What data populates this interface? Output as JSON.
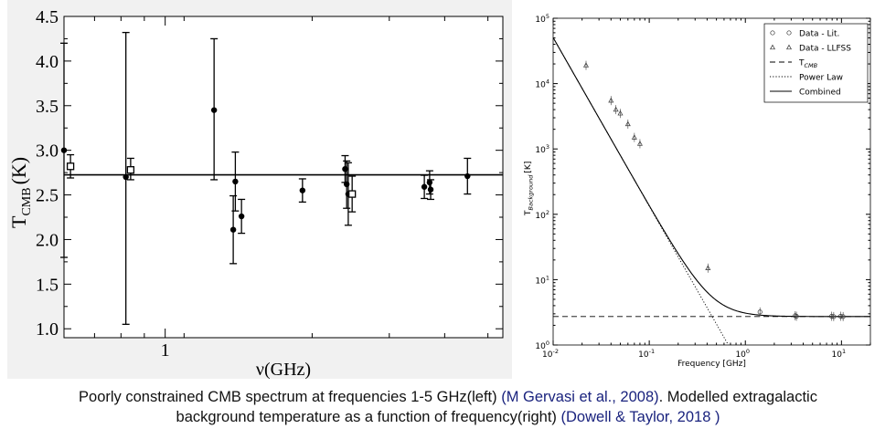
{
  "chart_data": [
    {
      "type": "scatter",
      "xlabel": "ν(GHz)",
      "ylabel": "T",
      "ylabel_sub": "CMB",
      "ylabel_unit": "(K)",
      "xscale": "log",
      "xlim": [
        0.6,
        5.5
      ],
      "ylim": [
        0.9,
        4.5
      ],
      "x_tick_labels": [
        {
          "value": 1,
          "label": "1"
        }
      ],
      "y_ticks": [
        1.0,
        1.5,
        2.0,
        2.5,
        3.0,
        3.5,
        4.0,
        4.5
      ],
      "y_tick_labels": [
        "1.0",
        "1.5",
        "2.0",
        "2.5",
        "3.0",
        "3.5",
        "4.0",
        "4.5"
      ],
      "reference_line": 2.725,
      "series": [
        {
          "marker": "circle",
          "points": [
            {
              "x": 0.6,
              "y": 3.0,
              "lo": 1.8,
              "hi": 4.2
            },
            {
              "x": 0.82,
              "y": 2.7,
              "lo": 1.05,
              "hi": 4.32
            },
            {
              "x": 1.28,
              "y": 3.45,
              "lo": 2.67,
              "hi": 4.25
            },
            {
              "x": 1.41,
              "y": 2.11,
              "lo": 1.73,
              "hi": 2.49
            },
            {
              "x": 1.425,
              "y": 2.65,
              "lo": 2.32,
              "hi": 2.98
            },
            {
              "x": 1.47,
              "y": 2.26,
              "lo": 2.07,
              "hi": 2.45
            },
            {
              "x": 2.0,
              "y": 2.55,
              "lo": 2.42,
              "hi": 2.68
            },
            {
              "x": 2.48,
              "y": 2.79,
              "lo": 2.64,
              "hi": 2.94
            },
            {
              "x": 2.5,
              "y": 2.62,
              "lo": 2.35,
              "hi": 2.88
            },
            {
              "x": 2.52,
              "y": 2.51,
              "lo": 2.16,
              "hi": 2.86
            },
            {
              "x": 3.7,
              "y": 2.59,
              "lo": 2.46,
              "hi": 2.72
            },
            {
              "x": 3.8,
              "y": 2.64,
              "lo": 2.51,
              "hi": 2.77
            },
            {
              "x": 3.82,
              "y": 2.56,
              "lo": 2.45,
              "hi": 2.67
            },
            {
              "x": 4.6,
              "y": 2.71,
              "lo": 2.51,
              "hi": 2.91
            }
          ]
        },
        {
          "marker": "square",
          "points": [
            {
              "x": 0.62,
              "y": 2.82,
              "lo": 2.69,
              "hi": 2.95
            },
            {
              "x": 0.84,
              "y": 2.78,
              "lo": 2.67,
              "hi": 2.91
            },
            {
              "x": 2.57,
              "y": 2.51,
              "lo": 2.31,
              "hi": 2.71
            }
          ]
        }
      ]
    },
    {
      "type": "line",
      "xlabel": "Frequency [GHz]",
      "ylabel": "T",
      "ylabel_sub": "Background",
      "ylabel_unit": "[K]",
      "xscale": "log",
      "yscale": "log",
      "xlim": [
        0.01,
        20
      ],
      "ylim": [
        1,
        100000
      ],
      "x_ticks": [
        0.01,
        0.1,
        1,
        10
      ],
      "x_tick_labels": [
        {
          "base": "10",
          "exp": "-2"
        },
        {
          "base": "10",
          "exp": "-1"
        },
        {
          "base": "10",
          "exp": "0"
        },
        {
          "base": "10",
          "exp": "1"
        }
      ],
      "y_ticks": [
        1,
        10,
        100,
        1000,
        10000,
        100000
      ],
      "y_tick_labels": [
        {
          "base": "10",
          "exp": "0"
        },
        {
          "base": "10",
          "exp": "1"
        },
        {
          "base": "10",
          "exp": "2"
        },
        {
          "base": "10",
          "exp": "3"
        },
        {
          "base": "10",
          "exp": "4"
        },
        {
          "base": "10",
          "exp": "5"
        }
      ],
      "legend_position": "top-right",
      "legend": [
        {
          "label": "Data - Lit.",
          "style": "circle"
        },
        {
          "label": "Data - LLFSS",
          "style": "triangle"
        },
        {
          "label": "T",
          "sub": "CMB",
          "style": "dashed"
        },
        {
          "label": "Power Law",
          "style": "dotted"
        },
        {
          "label": "Combined",
          "style": "solid"
        }
      ],
      "t_cmb": 2.725,
      "power_law_index": -2.58,
      "power_law_at_1ghz": 0.35,
      "series": [
        {
          "name": "Data - Lit.",
          "marker": "circle",
          "points": [
            {
              "x": 1.42,
              "y": 3.2
            },
            {
              "x": 3.3,
              "y": 2.8
            },
            {
              "x": 3.4,
              "y": 2.75
            },
            {
              "x": 7.9,
              "y": 2.75
            },
            {
              "x": 8.3,
              "y": 2.72
            },
            {
              "x": 9.8,
              "y": 2.75
            },
            {
              "x": 10.4,
              "y": 2.72
            }
          ]
        },
        {
          "name": "Data - LLFSS",
          "marker": "triangle",
          "points": [
            {
              "x": 0.022,
              "y": 19000
            },
            {
              "x": 0.04,
              "y": 5500
            },
            {
              "x": 0.045,
              "y": 4000
            },
            {
              "x": 0.05,
              "y": 3500
            },
            {
              "x": 0.06,
              "y": 2400
            },
            {
              "x": 0.07,
              "y": 1500
            },
            {
              "x": 0.08,
              "y": 1200
            },
            {
              "x": 0.408,
              "y": 15
            }
          ]
        }
      ]
    }
  ],
  "caption": {
    "line1_text": "Poorly constrained CMB spectrum at frequencies 1-5 GHz(left) ",
    "line1_cite": "(M Gervasi et al., 2008)",
    "line1_text2": ". Modelled extragalactic",
    "line2_text": "background temperature as a function of frequency(right) ",
    "line2_cite": "(Dowell & Taylor, 2018 )"
  }
}
